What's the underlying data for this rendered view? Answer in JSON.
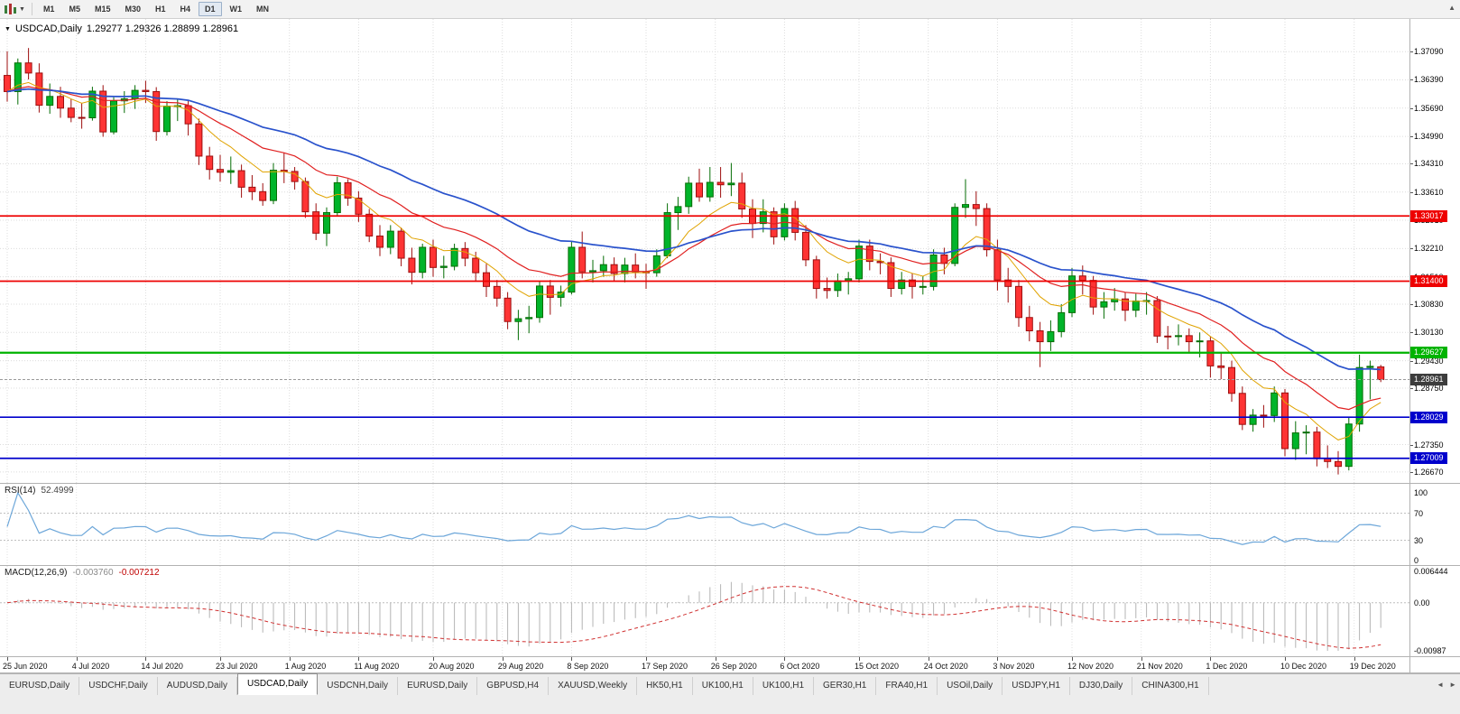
{
  "toolbar": {
    "periods": [
      {
        "label": "M1",
        "active": false
      },
      {
        "label": "M5",
        "active": false
      },
      {
        "label": "M15",
        "active": false
      },
      {
        "label": "M30",
        "active": false
      },
      {
        "label": "H1",
        "active": false
      },
      {
        "label": "H4",
        "active": false
      },
      {
        "label": "D1",
        "active": true
      },
      {
        "label": "W1",
        "active": false
      },
      {
        "label": "MN",
        "active": false
      }
    ]
  },
  "chart": {
    "title_symbol": "USDCAD,Daily",
    "title_ohlc": "1.29277 1.29326 1.28899 1.28961"
  },
  "price_axis": {
    "labels": [
      {
        "text": "1.37090",
        "price": 1.3709
      },
      {
        "text": "1.36390",
        "price": 1.3639
      },
      {
        "text": "1.35690",
        "price": 1.3569
      },
      {
        "text": "1.34990",
        "price": 1.3499
      },
      {
        "text": "1.34310",
        "price": 1.3431
      },
      {
        "text": "1.33610",
        "price": 1.3361
      },
      {
        "text": "1.32910",
        "price": 1.3291
      },
      {
        "text": "1.32210",
        "price": 1.3221
      },
      {
        "text": "1.31510",
        "price": 1.3151
      },
      {
        "text": "1.30830",
        "price": 1.3083
      },
      {
        "text": "1.30130",
        "price": 1.3013
      },
      {
        "text": "1.29430",
        "price": 1.2943
      },
      {
        "text": "1.28750",
        "price": 1.2875
      },
      {
        "text": "1.27350",
        "price": 1.2735
      },
      {
        "text": "1.26670",
        "price": 1.2667
      }
    ],
    "current": {
      "text": "1.28961",
      "price": 1.28961,
      "color": "#3d3d3d"
    }
  },
  "levels": [
    {
      "text": "1.33017",
      "price": 1.33017,
      "color": "#ee0000"
    },
    {
      "text": "1.31400",
      "price": 1.314,
      "color": "#ee0000"
    },
    {
      "text": "1.29627",
      "price": 1.29627,
      "color": "#00b300"
    },
    {
      "text": "1.28029",
      "price": 1.28029,
      "color": "#0000cc"
    },
    {
      "text": "1.27009",
      "price": 1.27009,
      "color": "#0000cc"
    }
  ],
  "rsi": {
    "name": "RSI(14)",
    "value": "52.4999",
    "period": 14,
    "line_color": "#6ca6d9",
    "axis": [
      {
        "text": "100",
        "v": 100
      },
      {
        "text": "70",
        "v": 70
      },
      {
        "text": "30",
        "v": 30
      },
      {
        "text": "0",
        "v": 0
      }
    ],
    "dotted_levels": [
      70,
      30
    ]
  },
  "macd": {
    "name": "MACD(12,26,9)",
    "value_main": "-0.003760",
    "value_signal": "-0.007212",
    "fast": 12,
    "slow": 26,
    "signal": 9,
    "hist_color": "#b4b4b4",
    "signal_color": "#d03030",
    "axis": [
      {
        "text": "0.006444",
        "v": 0.006444
      },
      {
        "text": "0.00",
        "v": 0
      },
      {
        "text": "-0.00987",
        "v": -0.00987
      }
    ],
    "scale_max": 0.006444,
    "scale_min": -0.00987
  },
  "tabs": [
    {
      "label": "EURUSD,Daily",
      "active": false
    },
    {
      "label": "USDCHF,Daily",
      "active": false
    },
    {
      "label": "AUDUSD,Daily",
      "active": false
    },
    {
      "label": "USDCAD,Daily",
      "active": true
    },
    {
      "label": "USDCNH,Daily",
      "active": false
    },
    {
      "label": "EURUSD,Daily",
      "active": false
    },
    {
      "label": "GBPUSD,H4",
      "active": false
    },
    {
      "label": "XAUUSD,Weekly",
      "active": false
    },
    {
      "label": "HK50,H1",
      "active": false
    },
    {
      "label": "UK100,H1",
      "active": false
    },
    {
      "label": "UK100,H1",
      "active": false
    },
    {
      "label": "GER30,H1",
      "active": false
    },
    {
      "label": "FRA40,H1",
      "active": false
    },
    {
      "label": "USOil,Daily",
      "active": false
    },
    {
      "label": "USDJPY,H1",
      "active": false
    },
    {
      "label": "DJ30,Daily",
      "active": false
    },
    {
      "label": "CHINA300,H1",
      "active": false
    }
  ],
  "chart_data": {
    "type": "candlestick",
    "symbol": "USDCAD",
    "timeframe": "Daily",
    "price_range_top": 1.379,
    "price_range_bottom": 1.264,
    "moving_averages": [
      {
        "period": 8,
        "color": "#e0a300",
        "width": 1
      },
      {
        "period": 17,
        "color": "#e02020",
        "width": 1.2
      },
      {
        "period": 34,
        "color": "#2952cc",
        "width": 1.7
      }
    ],
    "up_fill": "#00b42a",
    "up_stroke": "#046d04",
    "down_fill": "#fe3434",
    "down_stroke": "#9c0e0e",
    "date_labels": [
      {
        "text": "25 Jun 2020",
        "i": 0
      },
      {
        "text": "4 Jul 2020",
        "i": 6.5
      },
      {
        "text": "14 Jul 2020",
        "i": 13
      },
      {
        "text": "23 Jul 2020",
        "i": 20
      },
      {
        "text": "1 Aug 2020",
        "i": 26.5
      },
      {
        "text": "11 Aug 2020",
        "i": 33
      },
      {
        "text": "20 Aug 2020",
        "i": 40
      },
      {
        "text": "29 Aug 2020",
        "i": 46.5
      },
      {
        "text": "8 Sep 2020",
        "i": 53
      },
      {
        "text": "17 Sep 2020",
        "i": 60
      },
      {
        "text": "26 Sep 2020",
        "i": 66.5
      },
      {
        "text": "6 Oct 2020",
        "i": 73
      },
      {
        "text": "15 Oct 2020",
        "i": 80
      },
      {
        "text": "24 Oct 2020",
        "i": 86.5
      },
      {
        "text": "3 Nov 2020",
        "i": 93
      },
      {
        "text": "12 Nov 2020",
        "i": 100
      },
      {
        "text": "21 Nov 2020",
        "i": 106.5
      },
      {
        "text": "1 Dec 2020",
        "i": 113
      },
      {
        "text": "10 Dec 2020",
        "i": 120
      },
      {
        "text": "19 Dec 2020",
        "i": 126.5
      }
    ],
    "candles": [
      [
        1.365,
        1.371,
        1.3585,
        1.361
      ],
      [
        1.361,
        1.3692,
        1.3578,
        1.3681
      ],
      [
        1.3681,
        1.3718,
        1.364,
        1.3656
      ],
      [
        1.3656,
        1.368,
        1.3558,
        1.3576
      ],
      [
        1.3576,
        1.363,
        1.3555,
        1.3598
      ],
      [
        1.3598,
        1.3622,
        1.3545,
        1.3569
      ],
      [
        1.3569,
        1.3591,
        1.3534,
        1.3546
      ],
      [
        1.3546,
        1.3581,
        1.3518,
        1.3545
      ],
      [
        1.3545,
        1.3622,
        1.3538,
        1.3611
      ],
      [
        1.3611,
        1.3626,
        1.3498,
        1.351
      ],
      [
        1.351,
        1.3596,
        1.3504,
        1.3587
      ],
      [
        1.3587,
        1.3611,
        1.3557,
        1.3592
      ],
      [
        1.3592,
        1.3626,
        1.3567,
        1.3613
      ],
      [
        1.3613,
        1.3637,
        1.3582,
        1.361
      ],
      [
        1.361,
        1.3621,
        1.3488,
        1.3511
      ],
      [
        1.3511,
        1.3586,
        1.3501,
        1.3574
      ],
      [
        1.3574,
        1.3593,
        1.3537,
        1.3575
      ],
      [
        1.3575,
        1.3588,
        1.3501,
        1.353
      ],
      [
        1.353,
        1.3543,
        1.3428,
        1.345
      ],
      [
        1.345,
        1.3473,
        1.3392,
        1.3417
      ],
      [
        1.3417,
        1.3453,
        1.3387,
        1.341
      ],
      [
        1.341,
        1.3449,
        1.3381,
        1.3414
      ],
      [
        1.3414,
        1.3429,
        1.3347,
        1.3373
      ],
      [
        1.3373,
        1.3403,
        1.3341,
        1.3362
      ],
      [
        1.3362,
        1.3383,
        1.3327,
        1.334
      ],
      [
        1.334,
        1.3433,
        1.3331,
        1.3415
      ],
      [
        1.3415,
        1.3459,
        1.3383,
        1.3412
      ],
      [
        1.3412,
        1.3423,
        1.3367,
        1.3387
      ],
      [
        1.3387,
        1.3397,
        1.3297,
        1.3312
      ],
      [
        1.3312,
        1.3333,
        1.3242,
        1.3259
      ],
      [
        1.3259,
        1.3323,
        1.3227,
        1.331
      ],
      [
        1.331,
        1.3399,
        1.3301,
        1.3384
      ],
      [
        1.3384,
        1.3393,
        1.3327,
        1.3346
      ],
      [
        1.3346,
        1.3363,
        1.3287,
        1.3306
      ],
      [
        1.3306,
        1.3319,
        1.3237,
        1.3252
      ],
      [
        1.3252,
        1.3279,
        1.3202,
        1.3224
      ],
      [
        1.3224,
        1.3279,
        1.3207,
        1.3264
      ],
      [
        1.3264,
        1.3273,
        1.3177,
        1.3197
      ],
      [
        1.3197,
        1.3223,
        1.3132,
        1.3162
      ],
      [
        1.3162,
        1.3233,
        1.3147,
        1.3224
      ],
      [
        1.3224,
        1.3243,
        1.3151,
        1.3174
      ],
      [
        1.3174,
        1.3203,
        1.3147,
        1.3177
      ],
      [
        1.3177,
        1.3233,
        1.3167,
        1.3221
      ],
      [
        1.3221,
        1.3237,
        1.3177,
        1.3197
      ],
      [
        1.3197,
        1.3213,
        1.3141,
        1.3161
      ],
      [
        1.3161,
        1.3183,
        1.3101,
        1.3127
      ],
      [
        1.3127,
        1.3143,
        1.3077,
        1.3098
      ],
      [
        1.3098,
        1.3113,
        1.3021,
        1.304
      ],
      [
        1.304,
        1.3069,
        1.2994,
        1.3047
      ],
      [
        1.3047,
        1.3079,
        1.3011,
        1.305
      ],
      [
        1.305,
        1.3139,
        1.3037,
        1.3128
      ],
      [
        1.3128,
        1.3143,
        1.3057,
        1.31
      ],
      [
        1.31,
        1.3129,
        1.3077,
        1.3113
      ],
      [
        1.3113,
        1.3239,
        1.3107,
        1.3224
      ],
      [
        1.3224,
        1.3263,
        1.3147,
        1.3163
      ],
      [
        1.3163,
        1.3193,
        1.3137,
        1.3166
      ],
      [
        1.3166,
        1.3203,
        1.3151,
        1.3181
      ],
      [
        1.3181,
        1.3199,
        1.3141,
        1.3159
      ],
      [
        1.3159,
        1.3198,
        1.3137,
        1.318
      ],
      [
        1.318,
        1.3209,
        1.3147,
        1.3163
      ],
      [
        1.3163,
        1.3183,
        1.3121,
        1.3161
      ],
      [
        1.3161,
        1.3219,
        1.3151,
        1.3203
      ],
      [
        1.3203,
        1.3333,
        1.3197,
        1.331
      ],
      [
        1.331,
        1.3349,
        1.3267,
        1.3325
      ],
      [
        1.3325,
        1.3399,
        1.3307,
        1.3383
      ],
      [
        1.3383,
        1.3419,
        1.3337,
        1.3349
      ],
      [
        1.3349,
        1.3423,
        1.3337,
        1.3385
      ],
      [
        1.3385,
        1.3423,
        1.3347,
        1.3379
      ],
      [
        1.3379,
        1.3433,
        1.3351,
        1.3383
      ],
      [
        1.3383,
        1.3409,
        1.3297,
        1.3319
      ],
      [
        1.3319,
        1.3343,
        1.3247,
        1.3283
      ],
      [
        1.3283,
        1.3343,
        1.3261,
        1.3312
      ],
      [
        1.3312,
        1.3323,
        1.3231,
        1.325
      ],
      [
        1.325,
        1.3333,
        1.3241,
        1.332
      ],
      [
        1.332,
        1.3339,
        1.3241,
        1.3261
      ],
      [
        1.3261,
        1.3279,
        1.3177,
        1.3193
      ],
      [
        1.3193,
        1.3203,
        1.3097,
        1.3122
      ],
      [
        1.3122,
        1.3149,
        1.3097,
        1.3117
      ],
      [
        1.3117,
        1.3159,
        1.3101,
        1.3141
      ],
      [
        1.3141,
        1.3163,
        1.3107,
        1.3146
      ],
      [
        1.3146,
        1.3243,
        1.3137,
        1.3227
      ],
      [
        1.3227,
        1.3243,
        1.3167,
        1.3189
      ],
      [
        1.3189,
        1.3209,
        1.3157,
        1.3186
      ],
      [
        1.3186,
        1.3199,
        1.3101,
        1.3122
      ],
      [
        1.3122,
        1.3163,
        1.3107,
        1.3143
      ],
      [
        1.3143,
        1.3159,
        1.3097,
        1.3127
      ],
      [
        1.3127,
        1.3153,
        1.3107,
        1.3127
      ],
      [
        1.3127,
        1.3219,
        1.3117,
        1.3205
      ],
      [
        1.3205,
        1.3223,
        1.3157,
        1.3184
      ],
      [
        1.3184,
        1.3333,
        1.3177,
        1.3323
      ],
      [
        1.3323,
        1.3393,
        1.3297,
        1.333
      ],
      [
        1.333,
        1.3363,
        1.3277,
        1.332
      ],
      [
        1.332,
        1.3333,
        1.3201,
        1.3218
      ],
      [
        1.3218,
        1.3243,
        1.3117,
        1.3143
      ],
      [
        1.3143,
        1.3173,
        1.3087,
        1.3127
      ],
      [
        1.3127,
        1.3143,
        1.3027,
        1.305
      ],
      [
        1.305,
        1.3079,
        1.2991,
        1.3017
      ],
      [
        1.3017,
        1.3039,
        1.2927,
        1.299
      ],
      [
        1.299,
        1.3043,
        1.2967,
        1.3015
      ],
      [
        1.3015,
        1.3083,
        1.3001,
        1.3062
      ],
      [
        1.3062,
        1.3173,
        1.3051,
        1.3153
      ],
      [
        1.3153,
        1.3179,
        1.3107,
        1.3142
      ],
      [
        1.3142,
        1.3153,
        1.3057,
        1.3076
      ],
      [
        1.3076,
        1.3113,
        1.3047,
        1.3089
      ],
      [
        1.3089,
        1.3123,
        1.3067,
        1.3096
      ],
      [
        1.3096,
        1.3113,
        1.3041,
        1.3068
      ],
      [
        1.3068,
        1.3109,
        1.3051,
        1.3091
      ],
      [
        1.3091,
        1.3113,
        1.3057,
        1.3092
      ],
      [
        1.3092,
        1.3103,
        1.2987,
        1.3004
      ],
      [
        1.3004,
        1.3029,
        1.2971,
        1.3003
      ],
      [
        1.3003,
        1.3033,
        1.2981,
        1.3005
      ],
      [
        1.3005,
        1.3023,
        1.2961,
        1.299
      ],
      [
        1.299,
        1.3013,
        1.2951,
        1.2992
      ],
      [
        1.2992,
        1.3003,
        1.2901,
        1.293
      ],
      [
        1.293,
        1.2963,
        1.2897,
        1.2926
      ],
      [
        1.2926,
        1.2943,
        1.2841,
        1.2862
      ],
      [
        1.2862,
        1.2879,
        1.2771,
        1.2785
      ],
      [
        1.2785,
        1.2823,
        1.2767,
        1.2808
      ],
      [
        1.2808,
        1.2833,
        1.2777,
        1.2807
      ],
      [
        1.2807,
        1.2879,
        1.2791,
        1.2863
      ],
      [
        1.2863,
        1.2873,
        1.2706,
        1.2725
      ],
      [
        1.2725,
        1.2793,
        1.2697,
        1.2764
      ],
      [
        1.2764,
        1.2783,
        1.2711,
        1.2766
      ],
      [
        1.2766,
        1.2779,
        1.2681,
        1.27
      ],
      [
        1.27,
        1.2733,
        1.2677,
        1.2693
      ],
      [
        1.2693,
        1.2719,
        1.2661,
        1.2681
      ],
      [
        1.2681,
        1.2803,
        1.2671,
        1.2786
      ],
      [
        1.2786,
        1.2958,
        1.2767,
        1.2926
      ],
      [
        1.2926,
        1.2943,
        1.2847,
        1.2929
      ],
      [
        1.29277,
        1.29326,
        1.28899,
        1.28961
      ]
    ]
  }
}
